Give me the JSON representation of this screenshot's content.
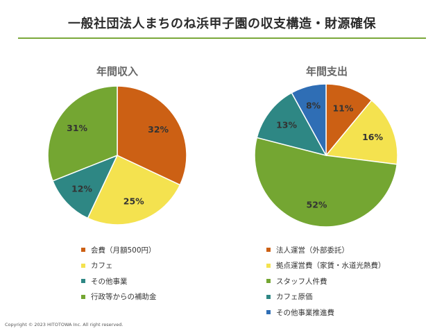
{
  "title": "一般社団法人まちのね浜甲子園の収支構造・財源確保",
  "copyright": "Copyright © 2023 HITOTOWA Inc. All right reserved.",
  "chart_data": [
    {
      "type": "pie",
      "title": "年間収入",
      "label_format": "percent",
      "slices": [
        {
          "label": "会費（月額500円）",
          "value": 32,
          "color": "#cc6014"
        },
        {
          "label": "カフェ",
          "value": 25,
          "color": "#f4e24f"
        },
        {
          "label": "その他事業",
          "value": 12,
          "color": "#2e8784"
        },
        {
          "label": "行政等からの補助金",
          "value": 31,
          "color": "#74a632"
        }
      ]
    },
    {
      "type": "pie",
      "title": "年間支出",
      "label_format": "percent",
      "slices": [
        {
          "label": "法人運営（外部委託）",
          "value": 11,
          "color": "#cc6014"
        },
        {
          "label": "拠点運営費（家賃・水道光熱費）",
          "value": 16,
          "color": "#f4e24f"
        },
        {
          "label": "スタッフ人件費",
          "value": 52,
          "color": "#74a632"
        },
        {
          "label": "カフェ原価",
          "value": 13,
          "color": "#2e8784"
        },
        {
          "label": "その他事業推進費",
          "value": 8,
          "color": "#2f6eb5"
        }
      ]
    }
  ]
}
